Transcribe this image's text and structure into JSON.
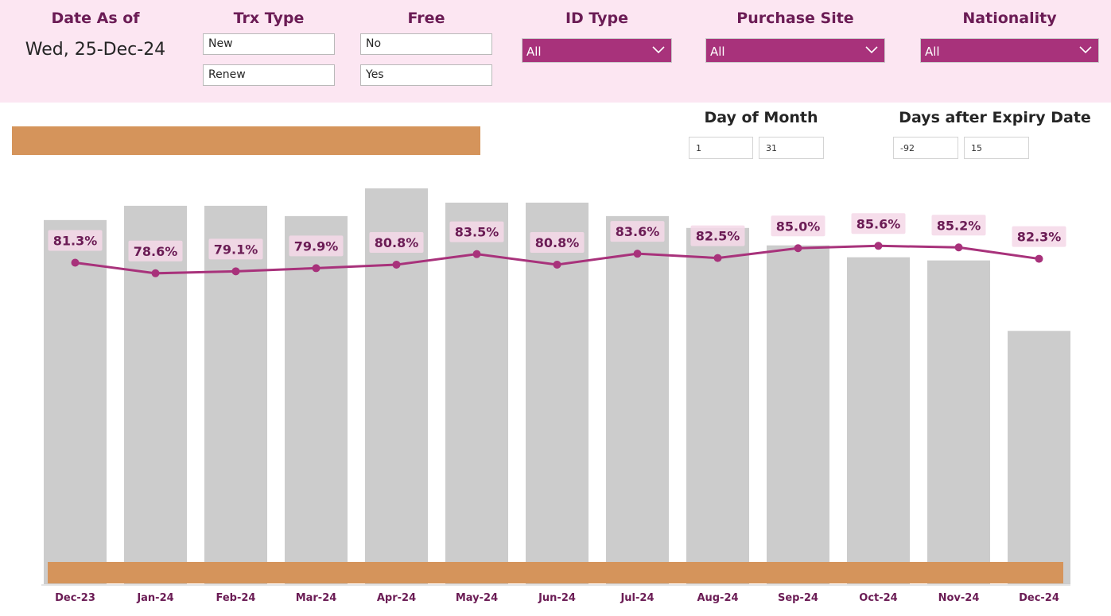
{
  "filters": {
    "date_as_of": {
      "title": "Date As of",
      "value": "Wed, 25-Dec-24"
    },
    "trx_type": {
      "title": "Trx Type",
      "options": [
        "New",
        "Renew"
      ]
    },
    "free": {
      "title": "Free",
      "options": [
        "No",
        "Yes"
      ]
    },
    "id_type": {
      "title": "ID Type",
      "selected": "All"
    },
    "purchase_site": {
      "title": "Purchase Site",
      "selected": "All"
    },
    "nationality": {
      "title": "Nationality",
      "selected": "All"
    }
  },
  "day_of_month": {
    "title": "Day of Month",
    "min": "1",
    "max": "31"
  },
  "days_after_expiry": {
    "title": "Days after Expiry Date",
    "min": "-92",
    "max": "15"
  },
  "colors": {
    "header_bg": "#fce6f2",
    "accent": "#a8327b",
    "title_text": "#6b1c55",
    "bar": "#cccccc",
    "orange_band": "#d5945b"
  },
  "chart_data": {
    "type": "bar",
    "categories": [
      "Dec-23",
      "Jan-24",
      "Feb-24",
      "Mar-24",
      "Apr-24",
      "May-24",
      "Jun-24",
      "Jul-24",
      "Aug-24",
      "Sep-24",
      "Oct-24",
      "Nov-24",
      "Dec-24"
    ],
    "series": [
      {
        "type": "bar",
        "values": [
          460,
          478,
          478,
          465,
          500,
          482,
          482,
          465,
          450,
          428,
          413,
          409,
          320
        ]
      },
      {
        "type": "line",
        "values": [
          81.3,
          78.6,
          79.1,
          79.9,
          80.8,
          83.5,
          80.8,
          83.6,
          82.5,
          85.0,
          85.6,
          85.2,
          82.3
        ],
        "labels": [
          "81.3%",
          "78.6%",
          "79.1%",
          "79.9%",
          "80.8%",
          "83.5%",
          "80.8%",
          "83.6%",
          "82.5%",
          "85.0%",
          "85.6%",
          "85.2%",
          "82.3%"
        ]
      }
    ],
    "ylim_bar": [
      0,
      500
    ],
    "ylim_line": [
      70,
      90
    ],
    "grid": false,
    "title": "",
    "xlabel": "",
    "ylabel": ""
  }
}
